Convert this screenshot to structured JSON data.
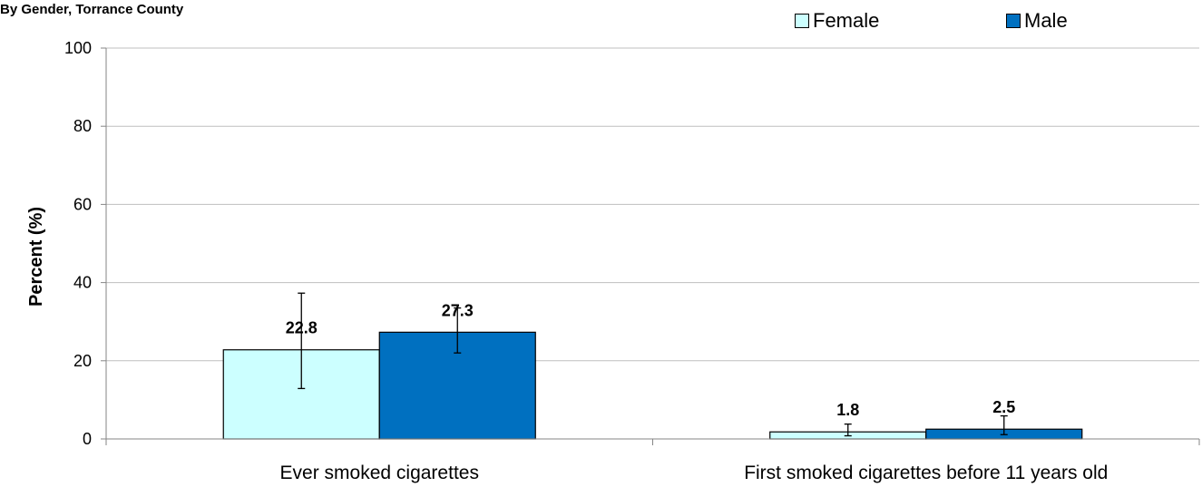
{
  "chart_data": {
    "type": "bar",
    "title": "By Gender, Torrance County",
    "ylabel": "Percent (%)",
    "xlabel": "",
    "ylim": [
      0,
      100
    ],
    "yticks": [
      0,
      20,
      40,
      60,
      80,
      100
    ],
    "grid": true,
    "legend_position": "top-right",
    "categories": [
      "Ever smoked cigarettes",
      "First smoked cigarettes before 11 years old"
    ],
    "series": [
      {
        "name": "Female",
        "color": "#CCFFFF",
        "values": [
          22.8,
          1.8
        ],
        "error_low": [
          12.9,
          0.8
        ],
        "error_high": [
          37.3,
          3.8
        ]
      },
      {
        "name": "Male",
        "color": "#0070C0",
        "values": [
          27.3,
          2.5
        ],
        "error_low": [
          22.0,
          1.1
        ],
        "error_high": [
          33.5,
          5.9
        ]
      }
    ]
  }
}
